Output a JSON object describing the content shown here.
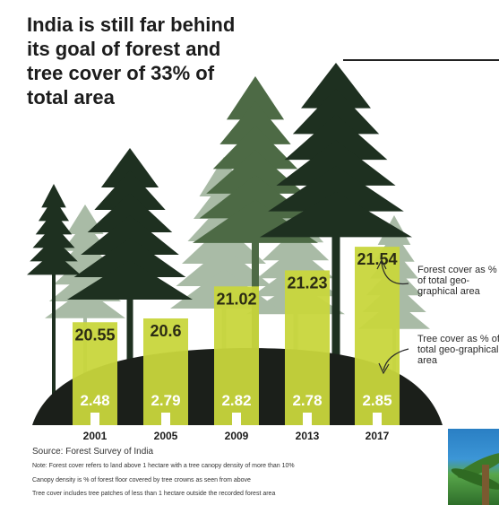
{
  "title": "India is still far behind its goal of forest and tree cover of 33% of total area",
  "annotations": {
    "forest": "Forest cover as % of total geo-graphical area",
    "tree": "Tree cover as % of total geo-graphical area"
  },
  "source": "Source: Forest Survey of India",
  "notes": [
    "Note: Forest cover refers to land above 1 hectare with a tree canopy density of more than 10%",
    "Canopy density is % of forest floor covered by tree crowns as seen from above",
    "Tree cover includes tree patches of less than 1 hectare outside the recorded forest area"
  ],
  "colors": {
    "forest_bar": "#c8d63c",
    "tree_bar": "#ffffff",
    "ground": "#1b1f1a",
    "tree_dark": "#1e3020",
    "tree_mid": "#4d6a45",
    "tree_light": "#a9bba6"
  },
  "chart_data": {
    "type": "bar",
    "categories": [
      "2001",
      "2005",
      "2009",
      "2013",
      "2017"
    ],
    "series": [
      {
        "name": "Forest cover as % of total geo-graphical area",
        "values": [
          20.55,
          20.6,
          21.02,
          21.23,
          21.54
        ]
      },
      {
        "name": "Tree cover as % of total geo-graphical area",
        "values": [
          2.48,
          2.79,
          2.82,
          2.78,
          2.85
        ]
      }
    ],
    "title": "India is still far behind its goal of forest and tree cover of 33% of total area",
    "xlabel": "",
    "ylabel": ""
  }
}
